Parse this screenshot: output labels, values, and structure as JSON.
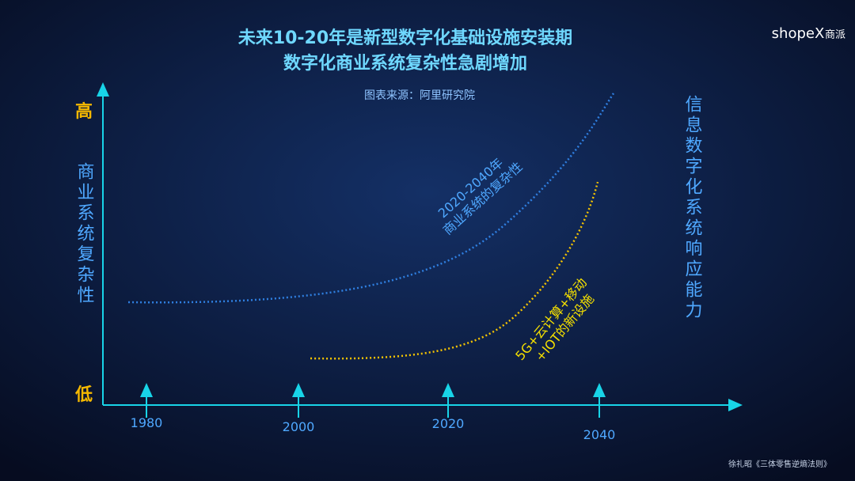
{
  "title": [
    "未来10-20年是新型数字化基础设施安装期",
    "数字化商业系统复杂性急剧增加"
  ],
  "source": "图表来源：阿里研究院",
  "y_axis": {
    "high": "高",
    "low": "低",
    "label": "商业系统复杂性"
  },
  "x_axis": {
    "labels": [
      "1980",
      "2000",
      "2020",
      "2040"
    ]
  },
  "right_label": "信息数字化系统响应能力",
  "curves": [
    {
      "label": [
        "2020-2040年",
        "商业系统的复杂性"
      ]
    },
    {
      "label": [
        "5G+云计算+移动",
        "+IOT的新设施"
      ]
    }
  ],
  "logo": {
    "brand": "shopeX",
    "cn": "商派"
  },
  "footer": "徐礼昭《三体零售逆熵法则》"
}
